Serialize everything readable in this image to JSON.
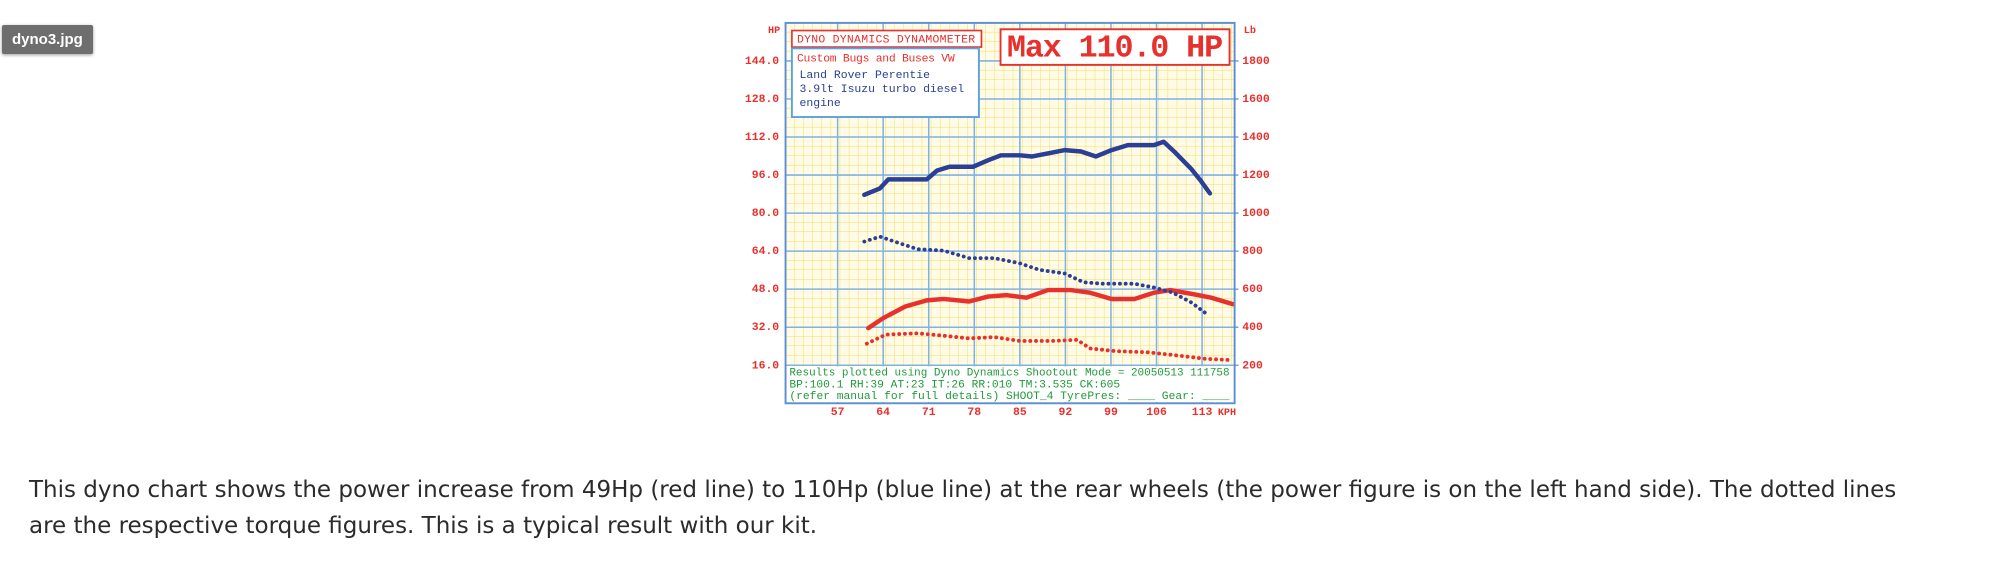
{
  "badge": "dyno3.jpg",
  "caption": "This dyno chart shows the power increase from 49Hp (red line) to 110Hp (blue line) at the rear wheels (the power figure is on the left hand side). The dotted lines are the respective torque figures. This is a typical result with our kit.",
  "chart_data": {
    "type": "line",
    "title": "DYNO DYNAMICS DYNAMOMETER",
    "annotation": "Max 110.0 HP",
    "info_title": "Custom Bugs and Buses VW",
    "info_lines": [
      "Land Rover Perentie",
      "3.9lt Isuzu turbo diesel",
      "engine"
    ],
    "footer_lines": [
      "Results plotted using Dyno Dynamics Shootout Mode = 20050513 111758",
      "BP:100.1 RH:39 AT:23 IT:26  RR:010 TM:3.535 CK:605",
      "(refer manual for full details) SHOOT_4  TyrePres: ____ Gear: ____"
    ],
    "y_label": "HP",
    "y2_label": "Lb",
    "x_label": "KPH",
    "xlim": [
      49,
      118
    ],
    "xticks": [
      57,
      64,
      71,
      78,
      85,
      92,
      99,
      106,
      113
    ],
    "ylim": [
      0,
      160
    ],
    "yticks": [
      {
        "value": 16,
        "label": "16.0"
      },
      {
        "value": 32,
        "label": "32.0"
      },
      {
        "value": 48,
        "label": "48.0"
      },
      {
        "value": 64,
        "label": "64.0"
      },
      {
        "value": 80,
        "label": "80.0"
      },
      {
        "value": 96,
        "label": "96.0"
      },
      {
        "value": 112,
        "label": "112.0"
      },
      {
        "value": 128,
        "label": "128.0"
      },
      {
        "value": 144,
        "label": "144.0"
      }
    ],
    "y2lim": [
      0,
      2000
    ],
    "y2ticks": [
      200,
      400,
      600,
      800,
      1000,
      1200,
      1400,
      1600,
      1800
    ],
    "grid": true,
    "series": [
      {
        "color": "#2a3f95",
        "style": "solid",
        "x": [
          61.1,
          63.5,
          64.8,
          70.7,
          72.3,
          74.2,
          77.8,
          80.1,
          82.1,
          85,
          86.9,
          89.9,
          91.9,
          94.4,
          96.7,
          99.1,
          101.6,
          105.6,
          107.1,
          108.9,
          111.4,
          112.8,
          114.2
        ],
        "values": [
          87.7,
          90.4,
          94.2,
          94.2,
          97.9,
          99.5,
          99.5,
          102.2,
          104.3,
          104.3,
          103.8,
          105.4,
          106.5,
          105.9,
          103.8,
          106.5,
          108.6,
          108.6,
          110,
          105.4,
          98.4,
          93.6,
          88.3
        ]
      },
      {
        "color": "#e8302c",
        "style": "solid",
        "x": [
          61.7,
          64,
          67.4,
          70.7,
          73.3,
          77.2,
          80.1,
          83,
          86,
          89.3,
          92.8,
          95.8,
          99.1,
          102.6,
          105.6,
          108.1,
          111.4,
          114.4,
          117.7
        ],
        "values": [
          31.6,
          35.8,
          40.7,
          43.3,
          43.9,
          42.8,
          44.9,
          45.5,
          44.4,
          47.6,
          47.6,
          46.5,
          43.9,
          43.9,
          46.5,
          47.6,
          46,
          44.4,
          41.7
        ]
      },
      {
        "color": "#2a3f95",
        "style": "dotted",
        "axis": "y2",
        "x": [
          61.1,
          63.5,
          66.4,
          69.3,
          73.3,
          77.2,
          81.1,
          85,
          88,
          91.9,
          94.8,
          97.7,
          102.6,
          105.6,
          108.5,
          111.4,
          114
        ],
        "values": [
          850,
          876,
          843,
          810,
          803,
          763,
          763,
          736,
          702,
          682,
          636,
          629,
          629,
          609,
          582,
          529,
          462
        ]
      },
      {
        "color": "#e8302c",
        "style": "dotted",
        "axis": "y2",
        "x": [
          61.5,
          64.4,
          69.3,
          73.3,
          77.2,
          81.1,
          85,
          89.9,
          93.8,
          95.8,
          99.7,
          104.6,
          108.5,
          113.4,
          117.7
        ],
        "values": [
          314,
          361,
          368,
          355,
          341,
          348,
          328,
          328,
          334,
          288,
          274,
          268,
          254,
          234,
          227
        ]
      }
    ]
  }
}
